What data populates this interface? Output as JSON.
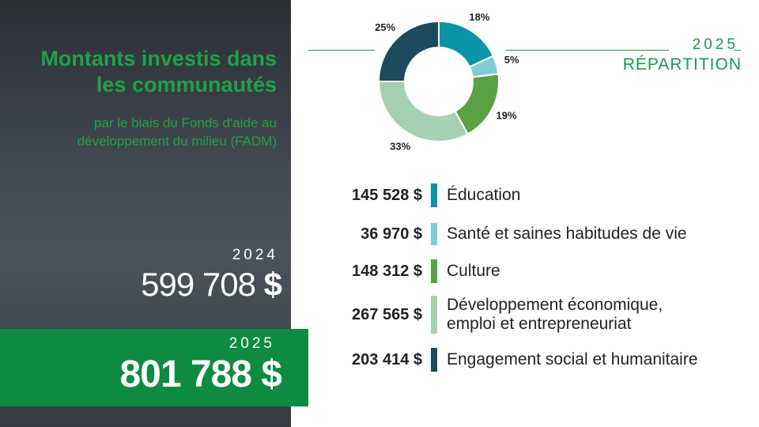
{
  "panel": {
    "title_line1": "Montants investis dans",
    "title_line2": "les communautés",
    "subtitle_line1": "par le biais du Fonds d'aide au",
    "subtitle_line2": "développement du milieu (FADM)",
    "previous": {
      "year": "2024",
      "amount": "599 708",
      "currency": "$"
    },
    "current": {
      "year": "2025",
      "amount": "801 788 $"
    }
  },
  "header": {
    "year": "2025",
    "label": "RÉPARTITION"
  },
  "colors": {
    "green_accent": "#1fa14a",
    "green_band": "#0e8b43",
    "education": "#0b93a6",
    "sante": "#7ecdd6",
    "culture": "#5ba043",
    "developpement": "#a5d1b2",
    "engagement": "#1d4a5e"
  },
  "chart_data": {
    "type": "pie",
    "donut": true,
    "slices": [
      {
        "label": "Éducation",
        "value": 18,
        "display": "18%",
        "amount": "145 528 $",
        "color": "#0b93a6"
      },
      {
        "label": "Santé et saines habitudes de vie",
        "value": 5,
        "display": "5%",
        "amount": "36 970 $",
        "color": "#7ecdd6"
      },
      {
        "label": "Culture",
        "value": 19,
        "display": "19%",
        "amount": "148 312 $",
        "color": "#5ba043"
      },
      {
        "label": "Développement économique, emploi et entrepreneuriat",
        "value": 33,
        "display": "33%",
        "amount": "267 565 $",
        "color": "#a5d1b2"
      },
      {
        "label": "Engagement social et humanitaire",
        "value": 25,
        "display": "25%",
        "amount": "203 414 $",
        "color": "#1d4a5e"
      }
    ]
  },
  "legend": [
    {
      "amount": "145 528 $",
      "label_lines": [
        "Éducation"
      ]
    },
    {
      "amount": "36 970 $",
      "label_lines": [
        "Santé et saines habitudes de vie"
      ]
    },
    {
      "amount": "148 312 $",
      "label_lines": [
        "Culture"
      ]
    },
    {
      "amount": "267 565 $",
      "label_lines": [
        "Développement économique,",
        "emploi et entrepreneuriat"
      ]
    },
    {
      "amount": "203 414 $",
      "label_lines": [
        "Engagement social et humanitaire"
      ]
    }
  ]
}
